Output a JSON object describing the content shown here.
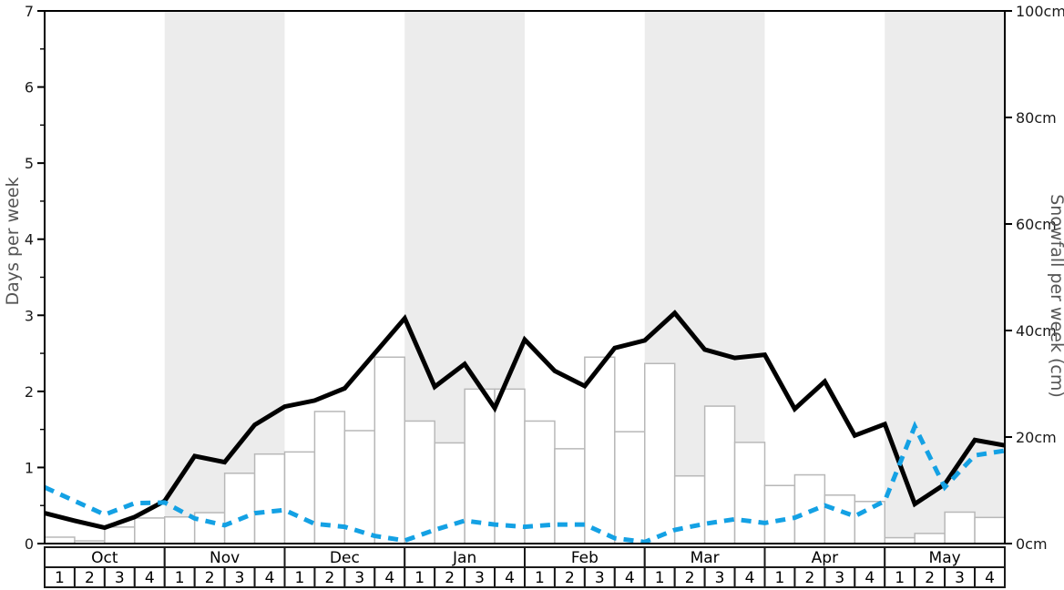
{
  "chart_data": {
    "type": "line",
    "title": "",
    "months": [
      "Oct",
      "Nov",
      "Dec",
      "Jan",
      "Feb",
      "Mar",
      "Apr",
      "May"
    ],
    "week_labels": [
      "1",
      "2",
      "3",
      "4"
    ],
    "shaded_month_indices": [
      1,
      3,
      5,
      7
    ],
    "left_axis": {
      "label": "Days per week",
      "min": 0,
      "max": 7,
      "major_step": 1,
      "minor_step": 0.5,
      "ticks": [
        "0",
        "1",
        "2",
        "3",
        "4",
        "5",
        "6",
        "7"
      ]
    },
    "right_axis": {
      "label": "Snowfall per week (cm)",
      "min": 0,
      "max": 100,
      "major_step": 20,
      "ticks": [
        "0cm",
        "20cm",
        "40cm",
        "60cm",
        "80cm",
        "100cm"
      ]
    },
    "bars": {
      "name": "snowfall-per-week-cm",
      "values_cm": [
        1.2,
        0.5,
        3.1,
        4.8,
        5.0,
        5.8,
        13.2,
        16.8,
        17.2,
        24.8,
        21.2,
        35.0,
        23.0,
        18.9,
        29.0,
        29.0,
        23.0,
        17.8,
        35.0,
        21.0,
        33.8,
        12.7,
        25.8,
        19.0,
        10.9,
        12.9,
        9.1,
        7.9,
        1.1,
        1.9,
        5.9,
        4.9
      ]
    },
    "series": [
      {
        "name": "days-per-week-solid-black",
        "style": "solid",
        "color": "#000000",
        "values_days": [
          0.4,
          0.3,
          0.21,
          0.35,
          0.56,
          1.15,
          1.07,
          1.56,
          1.8,
          1.88,
          2.04,
          2.5,
          2.96,
          2.06,
          2.36,
          1.78,
          2.68,
          2.27,
          2.07,
          2.57,
          2.67,
          3.03,
          2.55,
          2.44,
          2.48,
          1.77,
          2.13,
          1.42,
          1.57,
          0.52,
          0.78,
          1.36,
          1.29
        ]
      },
      {
        "name": "days-per-week-dashed-blue",
        "style": "dashed",
        "color": "#14a1e4",
        "values_days": [
          0.74,
          0.56,
          0.38,
          0.53,
          0.54,
          0.33,
          0.24,
          0.4,
          0.44,
          0.26,
          0.22,
          0.1,
          0.04,
          0.18,
          0.3,
          0.25,
          0.22,
          0.25,
          0.25,
          0.07,
          0.02,
          0.18,
          0.26,
          0.32,
          0.27,
          0.34,
          0.5,
          0.36,
          0.56,
          1.54,
          0.74,
          1.16,
          1.22
        ]
      }
    ],
    "layout_hints": {
      "grid": "off",
      "legend": "none",
      "band_color": "#ececec",
      "bar_fill": "#ffffff",
      "bar_border": "#b8b8b8",
      "axis_color": "#000000",
      "tick_label_color": "#1a1a1a",
      "axis_title_color": "#555555",
      "table_border_color": "#1a1a1a"
    }
  }
}
